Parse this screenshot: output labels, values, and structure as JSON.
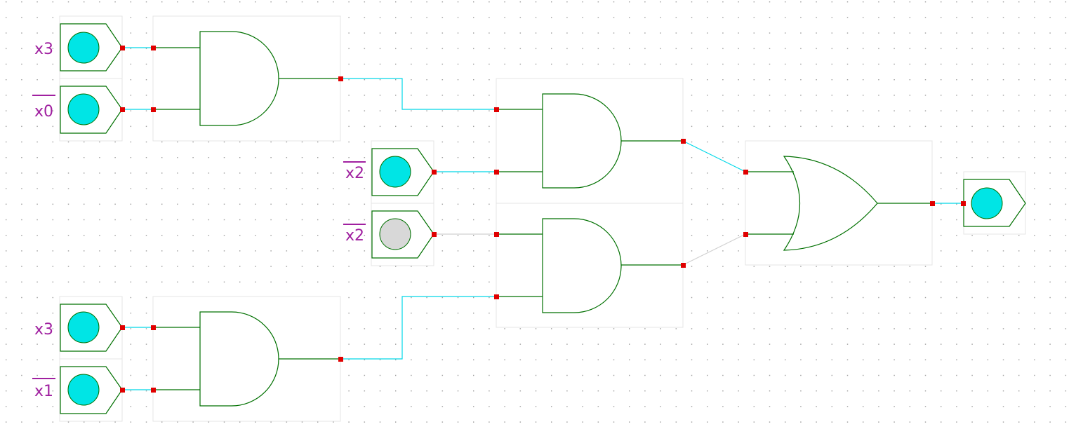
{
  "inputs": [
    {
      "label": "x3",
      "negated": false,
      "state": "on"
    },
    {
      "label": "x0",
      "negated": true,
      "state": "on"
    },
    {
      "label": "x2",
      "negated": true,
      "state": "on"
    },
    {
      "label": "x2",
      "negated": true,
      "state": "off"
    },
    {
      "label": "x3",
      "negated": false,
      "state": "on"
    },
    {
      "label": "x1",
      "negated": true,
      "state": "on"
    }
  ],
  "gates": [
    {
      "type": "AND"
    },
    {
      "type": "AND"
    },
    {
      "type": "AND"
    },
    {
      "type": "AND"
    },
    {
      "type": "OR"
    }
  ],
  "output": {
    "state": "on"
  },
  "colors": {
    "led_on": "#00e5e5",
    "led_off": "#d8d8d8",
    "gate_stroke": "#007000",
    "wire_active": "#00d8e8",
    "wire_inactive": "#d0d0d0",
    "pin": "#e00000",
    "label": "#a020a0",
    "grid_dot": "#999999"
  }
}
